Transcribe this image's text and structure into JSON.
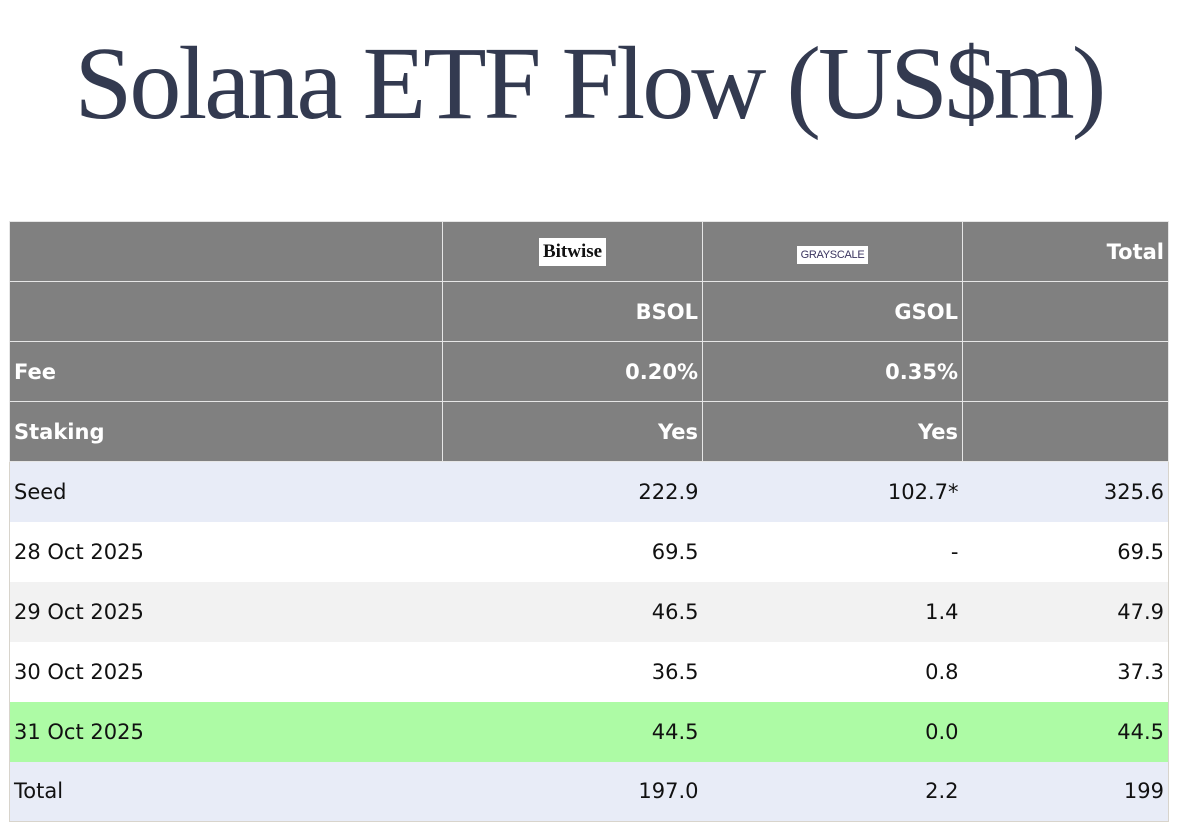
{
  "title": "Solana ETF Flow (US$m)",
  "table": {
    "logos": [
      "Bitwise",
      "GRAYSCALE"
    ],
    "total_header": "Total",
    "tickers": [
      "BSOL",
      "GSOL"
    ],
    "fee": {
      "label": "Fee",
      "values": [
        "0.20%",
        "0.35%"
      ]
    },
    "staking": {
      "label": "Staking",
      "values": [
        "Yes",
        "Yes"
      ]
    },
    "rows": [
      [
        "Seed",
        "222.9",
        "102.7*",
        "325.6"
      ],
      [
        "28 Oct 2025",
        "69.5",
        "-",
        "69.5"
      ],
      [
        "29 Oct 2025",
        "46.5",
        "1.4",
        "47.9"
      ],
      [
        "30 Oct 2025",
        "36.5",
        "0.8",
        "37.3"
      ],
      [
        "31 Oct 2025",
        "44.5",
        "0.0",
        "44.5"
      ],
      [
        "Total",
        "197.0",
        "2.2",
        "199"
      ]
    ]
  }
}
